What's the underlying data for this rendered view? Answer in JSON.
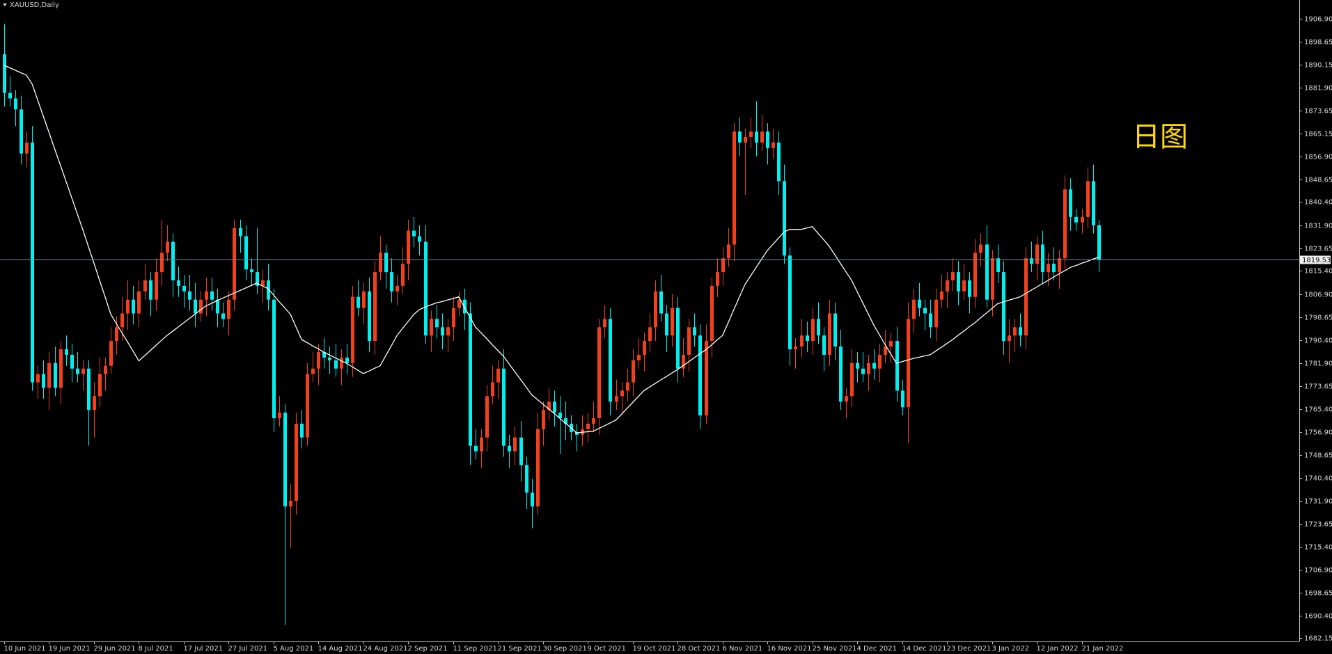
{
  "chart_data": {
    "type": "candlestick",
    "title": "XAUUSD,Daily",
    "annotation": "日图",
    "annotation_color": "#ffd800",
    "up_color": "#f2401d",
    "down_color": "#00f0f0",
    "price_line_color": "#6f8faa",
    "categories": [
      "10 Jun 2021",
      null,
      null,
      null,
      null,
      null,
      null,
      null,
      "19 Jun 2021",
      null,
      null,
      null,
      null,
      null,
      null,
      null,
      "29 Jun 2021",
      null,
      null,
      null,
      null,
      null,
      null,
      null,
      "8 Jul 2021",
      null,
      null,
      null,
      null,
      null,
      null,
      null,
      "17 Jul 2021",
      null,
      null,
      null,
      null,
      null,
      null,
      null,
      "27 Jul 2021",
      null,
      null,
      null,
      null,
      null,
      null,
      null,
      "5 Aug 2021",
      null,
      null,
      null,
      null,
      null,
      null,
      null,
      "14 Aug 2021",
      null,
      null,
      null,
      null,
      null,
      null,
      null,
      "24 Aug 2021",
      null,
      null,
      null,
      null,
      null,
      null,
      null,
      "2 Sep 2021",
      null,
      null,
      null,
      null,
      null,
      null,
      null,
      "11 Sep 2021",
      null,
      null,
      null,
      null,
      null,
      null,
      null,
      "21 Sep 2021",
      null,
      null,
      null,
      null,
      null,
      null,
      null,
      "30 Sep 2021",
      null,
      null,
      null,
      null,
      null,
      null,
      null,
      "9 Oct 2021",
      null,
      null,
      null,
      null,
      null,
      null,
      null,
      "19 Oct 2021",
      null,
      null,
      null,
      null,
      null,
      null,
      null,
      "28 Oct 2021",
      null,
      null,
      null,
      null,
      null,
      null,
      null,
      "6 Nov 2021",
      null,
      null,
      null,
      null,
      null,
      null,
      null,
      "16 Nov 2021",
      null,
      null,
      null,
      null,
      null,
      null,
      null,
      "25 Nov 2021",
      null,
      null,
      null,
      null,
      null,
      null,
      null,
      "4 Dec 2021",
      null,
      null,
      null,
      null,
      null,
      null,
      null,
      "14 Dec 2021",
      null,
      null,
      null,
      null,
      null,
      null,
      null,
      "23 Dec 2021",
      null,
      null,
      null,
      null,
      null,
      null,
      null,
      "3 Jan 2022",
      null,
      null,
      null,
      null,
      null,
      null,
      null,
      "12 Jan 2022",
      null,
      null,
      null,
      null,
      null,
      null,
      null,
      "21 Jan 2022",
      null,
      null,
      null
    ],
    "open": [
      1894,
      1880,
      1878,
      1874,
      1858,
      1862,
      1775,
      1778,
      1773,
      1782,
      1773,
      1787,
      1785,
      1780,
      1778,
      1780,
      1765,
      1770,
      1778,
      1781,
      1790,
      1795,
      1800,
      1805,
      1800,
      1808,
      1812,
      1805,
      1815,
      1822,
      1826,
      1812,
      1810,
      1808,
      1805,
      1800,
      1805,
      1808,
      1805,
      1800,
      1798,
      1805,
      1831,
      1828,
      1816,
      1815,
      1810,
      1812,
      1805,
      1762,
      1764,
      1730,
      1732,
      1760,
      1755,
      1778,
      1780,
      1786,
      1784,
      1783,
      1780,
      1784,
      1782,
      1806,
      1802,
      1808,
      1790,
      1815,
      1822,
      1815,
      1808,
      1810,
      1818,
      1830,
      1828,
      1826,
      1792,
      1798,
      1795,
      1792,
      1795,
      1802,
      1805,
      1800,
      1752,
      1750,
      1755,
      1770,
      1775,
      1780,
      1752,
      1750,
      1755,
      1745,
      1735,
      1730,
      1758,
      1765,
      1768,
      1764,
      1762,
      1760,
      1757,
      1756,
      1758,
      1760,
      1762,
      1795,
      1798,
      1768,
      1770,
      1772,
      1775,
      1783,
      1785,
      1790,
      1795,
      1808,
      1800,
      1792,
      1802,
      1780,
      1785,
      1795,
      1792,
      1763,
      1790,
      1810,
      1815,
      1820,
      1825,
      1866,
      1862,
      1864,
      1866,
      1862,
      1866,
      1860,
      1862,
      1848,
      1821,
      1787,
      1788,
      1792,
      1790,
      1798,
      1792,
      1785,
      1800,
      1788,
      1768,
      1770,
      1782,
      1780,
      1778,
      1782,
      1780,
      1785,
      1788,
      1790,
      1772,
      1766,
      1798,
      1805,
      1802,
      1800,
      1795,
      1805,
      1808,
      1812,
      1815,
      1808,
      1812,
      1806,
      1822,
      1825,
      1805,
      1820,
      1815,
      1790,
      1792,
      1795,
      1792,
      1820,
      1818,
      1825,
      1815,
      1818,
      1815,
      1820,
      1845,
      1835,
      1833,
      1835,
      1848,
      1832
    ],
    "high": [
      1905,
      1886,
      1881,
      1879,
      1866,
      1868,
      1781,
      1783,
      1786,
      1788,
      1790,
      1792,
      1789,
      1786,
      1783,
      1783,
      1775,
      1784,
      1784,
      1795,
      1799,
      1806,
      1812,
      1810,
      1812,
      1818,
      1815,
      1820,
      1834,
      1832,
      1829,
      1817,
      1814,
      1814,
      1811,
      1808,
      1813,
      1813,
      1809,
      1804,
      1808,
      1834,
      1834,
      1832,
      1820,
      1831,
      1816,
      1818,
      1809,
      1770,
      1767,
      1738,
      1764,
      1765,
      1782,
      1786,
      1789,
      1791,
      1788,
      1789,
      1787,
      1789,
      1810,
      1812,
      1811,
      1813,
      1819,
      1828,
      1825,
      1820,
      1814,
      1824,
      1834,
      1835,
      1832,
      1832,
      1801,
      1803,
      1800,
      1798,
      1806,
      1808,
      1809,
      1804,
      1758,
      1758,
      1774,
      1781,
      1783,
      1787,
      1756,
      1759,
      1761,
      1748,
      1740,
      1764,
      1768,
      1773,
      1772,
      1770,
      1768,
      1763,
      1760,
      1763,
      1764,
      1768,
      1798,
      1803,
      1802,
      1776,
      1775,
      1780,
      1787,
      1791,
      1793,
      1800,
      1812,
      1814,
      1803,
      1807,
      1806,
      1791,
      1798,
      1800,
      1796,
      1796,
      1813,
      1820,
      1824,
      1831,
      1869,
      1871,
      1867,
      1871,
      1877,
      1872,
      1869,
      1867,
      1866,
      1854,
      1824,
      1791,
      1798,
      1797,
      1802,
      1804,
      1795,
      1805,
      1804,
      1794,
      1773,
      1787,
      1786,
      1786,
      1785,
      1787,
      1789,
      1794,
      1793,
      1795,
      1776,
      1804,
      1809,
      1811,
      1805,
      1805,
      1809,
      1814,
      1815,
      1820,
      1819,
      1818,
      1815,
      1827,
      1829,
      1832,
      1823,
      1825,
      1819,
      1798,
      1798,
      1800,
      1824,
      1826,
      1828,
      1830,
      1822,
      1824,
      1823,
      1850,
      1849,
      1838,
      1838,
      1853,
      1854,
      1834
    ],
    "low": [
      1875,
      1875,
      1868,
      1854,
      1853,
      1772,
      1769,
      1769,
      1765,
      1770,
      1767,
      1781,
      1775,
      1775,
      1772,
      1752,
      1755,
      1766,
      1772,
      1778,
      1785,
      1790,
      1794,
      1796,
      1795,
      1805,
      1799,
      1801,
      1810,
      1819,
      1806,
      1806,
      1802,
      1801,
      1795,
      1797,
      1799,
      1801,
      1795,
      1795,
      1792,
      1801,
      1822,
      1812,
      1810,
      1807,
      1804,
      1801,
      1757,
      1759,
      1687,
      1715,
      1727,
      1751,
      1752,
      1775,
      1774,
      1780,
      1778,
      1777,
      1774,
      1778,
      1777,
      1799,
      1796,
      1786,
      1785,
      1812,
      1809,
      1804,
      1803,
      1807,
      1812,
      1824,
      1821,
      1789,
      1786,
      1791,
      1787,
      1786,
      1790,
      1799,
      1794,
      1745,
      1747,
      1744,
      1750,
      1767,
      1769,
      1748,
      1744,
      1745,
      1739,
      1729,
      1722,
      1727,
      1752,
      1761,
      1759,
      1749,
      1754,
      1754,
      1750,
      1752,
      1753,
      1757,
      1756,
      1791,
      1763,
      1765,
      1764,
      1768,
      1770,
      1780,
      1779,
      1786,
      1790,
      1797,
      1786,
      1788,
      1775,
      1777,
      1779,
      1788,
      1758,
      1760,
      1784,
      1806,
      1810,
      1817,
      1819,
      1857,
      1843,
      1860,
      1857,
      1859,
      1854,
      1856,
      1843,
      1818,
      1781,
      1780,
      1784,
      1786,
      1785,
      1789,
      1779,
      1781,
      1783,
      1765,
      1762,
      1766,
      1775,
      1775,
      1772,
      1776,
      1775,
      1782,
      1782,
      1768,
      1763,
      1753,
      1793,
      1799,
      1794,
      1791,
      1790,
      1802,
      1802,
      1808,
      1803,
      1805,
      1800,
      1802,
      1817,
      1802,
      1799,
      1811,
      1785,
      1782,
      1786,
      1788,
      1787,
      1815,
      1812,
      1811,
      1810,
      1812,
      1809,
      1816,
      1830,
      1830,
      1829,
      1831,
      1829,
      1815
    ],
    "close": [
      1880,
      1878,
      1874,
      1858,
      1862,
      1775,
      1778,
      1773,
      1782,
      1773,
      1787,
      1785,
      1780,
      1778,
      1780,
      1765,
      1770,
      1778,
      1781,
      1790,
      1795,
      1800,
      1805,
      1800,
      1808,
      1812,
      1805,
      1815,
      1822,
      1826,
      1812,
      1810,
      1808,
      1805,
      1800,
      1805,
      1808,
      1805,
      1800,
      1798,
      1805,
      1831,
      1828,
      1816,
      1815,
      1810,
      1812,
      1805,
      1762,
      1764,
      1730,
      1732,
      1760,
      1755,
      1778,
      1780,
      1786,
      1784,
      1783,
      1780,
      1784,
      1782,
      1806,
      1802,
      1808,
      1790,
      1815,
      1822,
      1815,
      1808,
      1810,
      1818,
      1830,
      1828,
      1826,
      1792,
      1798,
      1795,
      1792,
      1795,
      1802,
      1805,
      1800,
      1752,
      1750,
      1755,
      1770,
      1775,
      1780,
      1752,
      1750,
      1755,
      1745,
      1735,
      1730,
      1758,
      1765,
      1768,
      1764,
      1762,
      1760,
      1757,
      1756,
      1758,
      1760,
      1762,
      1795,
      1798,
      1768,
      1770,
      1772,
      1775,
      1783,
      1785,
      1790,
      1795,
      1808,
      1800,
      1792,
      1802,
      1780,
      1785,
      1795,
      1792,
      1763,
      1790,
      1810,
      1815,
      1820,
      1825,
      1866,
      1862,
      1864,
      1866,
      1862,
      1866,
      1860,
      1862,
      1848,
      1821,
      1787,
      1788,
      1792,
      1790,
      1798,
      1792,
      1785,
      1800,
      1788,
      1768,
      1770,
      1782,
      1780,
      1778,
      1782,
      1780,
      1785,
      1788,
      1790,
      1772,
      1766,
      1798,
      1805,
      1802,
      1800,
      1795,
      1805,
      1808,
      1812,
      1815,
      1808,
      1812,
      1806,
      1822,
      1825,
      1805,
      1820,
      1815,
      1790,
      1792,
      1795,
      1792,
      1820,
      1818,
      1825,
      1815,
      1818,
      1815,
      1820,
      1845,
      1835,
      1833,
      1835,
      1848,
      1832,
      1819.53
    ],
    "overlay": {
      "color": "#ffffff",
      "values": [
        1890,
        1889.1,
        1888.2,
        1887.3,
        1886.4,
        1883.1,
        1877.2,
        1871.4,
        1865.6,
        1859.7,
        1853.9,
        1848,
        1842.2,
        1836.3,
        1830.5,
        1824.3,
        1818.2,
        1812,
        1805.9,
        1799.7,
        1796.3,
        1792.9,
        1789.6,
        1786.2,
        1782.8,
        1784.6,
        1786.5,
        1788.3,
        1790.2,
        1792,
        1793.5,
        1795.1,
        1796.6,
        1798.2,
        1799.7,
        1801.3,
        1802.8,
        1803.7,
        1804.7,
        1805.6,
        1806.5,
        1807.4,
        1808.3,
        1809.2,
        1810.1,
        1811,
        1810,
        1809,
        1806.7,
        1804.3,
        1802,
        1799.7,
        1795.1,
        1790.5,
        1789.4,
        1788.2,
        1787.1,
        1785.9,
        1784.9,
        1783.9,
        1782.9,
        1781.9,
        1780.7,
        1779.4,
        1778.2,
        1779.1,
        1780.1,
        1781,
        1784.7,
        1788.3,
        1792,
        1794.6,
        1797.1,
        1799.7,
        1801.4,
        1802.3,
        1803.1,
        1803.8,
        1804.3,
        1804.9,
        1805.4,
        1806,
        1802.3,
        1798.7,
        1795,
        1792.9,
        1790.8,
        1788.6,
        1786.5,
        1784.4,
        1781.6,
        1778.8,
        1776.1,
        1773.3,
        1770.5,
        1768.8,
        1767.1,
        1765.4,
        1763.7,
        1762,
        1760.2,
        1758.5,
        1756.7,
        1756.9,
        1757.1,
        1757.3,
        1758.3,
        1759.3,
        1760.3,
        1761.3,
        1763.4,
        1765.6,
        1767.7,
        1769.9,
        1772,
        1773.3,
        1774.6,
        1775.9,
        1777.1,
        1778.4,
        1779.7,
        1781.1,
        1782.5,
        1784,
        1785.4,
        1786.8,
        1788.5,
        1790.3,
        1792,
        1796.6,
        1801.3,
        1805.9,
        1810.5,
        1813.6,
        1816.7,
        1819.8,
        1822.9,
        1825.1,
        1827.4,
        1829.6,
        1830.5,
        1830.5,
        1830.5,
        1831,
        1831.5,
        1829.1,
        1826.8,
        1824.4,
        1821.3,
        1818.2,
        1815.1,
        1812,
        1807.9,
        1803.8,
        1799.7,
        1795.6,
        1792.1,
        1788.6,
        1785.2,
        1781.9,
        1782.5,
        1783.1,
        1783.7,
        1784.1,
        1784.6,
        1785,
        1786.4,
        1787.7,
        1789.1,
        1790.5,
        1792.1,
        1793.6,
        1795.2,
        1796.7,
        1798.4,
        1800.1,
        1801.8,
        1803.5,
        1804.1,
        1804.8,
        1805.4,
        1806,
        1807.2,
        1808.4,
        1809.6,
        1810.8,
        1812,
        1813.2,
        1814.4,
        1815.5,
        1816.7,
        1817.4,
        1818.2,
        1818.9,
        1819.7,
        1820.4
      ]
    },
    "ylim": [
      1681.0,
      1913.7
    ],
    "yticks": [
      1682.15,
      {
        "value": 1690.4,
        "label": "1690.40"
      },
      1698.65,
      {
        "value": 1706.9,
        "label": "1706.90"
      },
      {
        "value": 1715.4,
        "label": "1715.40"
      },
      1723.65,
      {
        "value": 1731.9,
        "label": "1731.90"
      },
      {
        "value": 1740.4,
        "label": "1740.40"
      },
      1748.65,
      {
        "value": 1756.9,
        "label": "1756.90"
      },
      {
        "value": 1765.4,
        "label": "1765.40"
      },
      1773.65,
      {
        "value": 1781.9,
        "label": "1781.90"
      },
      {
        "value": 1790.4,
        "label": "1790.40"
      },
      1798.65,
      {
        "value": 1806.9,
        "label": "1806.90"
      },
      {
        "value": 1815.4,
        "label": "1815.40"
      },
      1823.65,
      {
        "value": 1831.9,
        "label": "1831.90"
      },
      {
        "value": 1840.4,
        "label": "1840.40"
      },
      1848.65,
      {
        "value": 1856.9,
        "label": "1856.90"
      },
      1865.15,
      1873.65,
      {
        "value": 1881.9,
        "label": "1881.90"
      },
      1890.15,
      1898.65,
      {
        "value": 1906.9,
        "label": "1906.90"
      }
    ]
  }
}
